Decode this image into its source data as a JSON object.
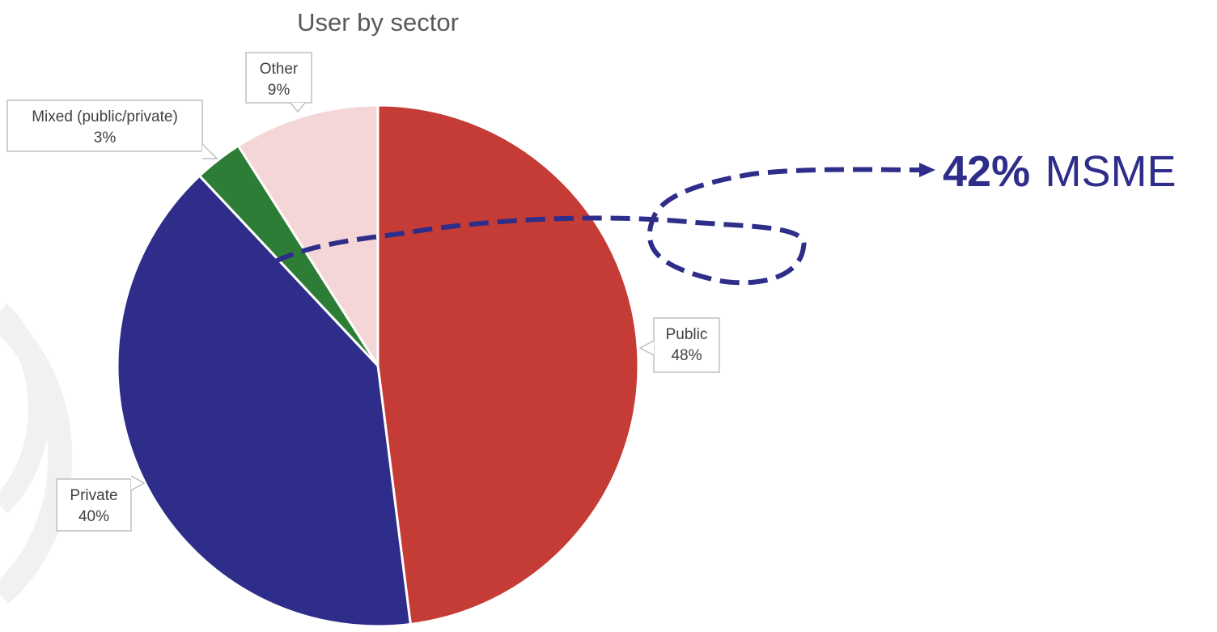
{
  "chart_data": {
    "type": "pie",
    "title": "User by sector",
    "slices": [
      {
        "name": "Public",
        "value": 48,
        "label": "48%",
        "color": "#C43C35"
      },
      {
        "name": "Private",
        "value": 40,
        "label": "40%",
        "color": "#2E2D8A"
      },
      {
        "name": "Mixed (public/private)",
        "value": 3,
        "label": "3%",
        "color": "#2E7D36"
      },
      {
        "name": "Other",
        "value": 9,
        "label": "9%",
        "color": "#F4D6D7"
      }
    ],
    "annotation": {
      "value": "42%",
      "text": "MSME",
      "color": "#2E2D8A"
    }
  }
}
